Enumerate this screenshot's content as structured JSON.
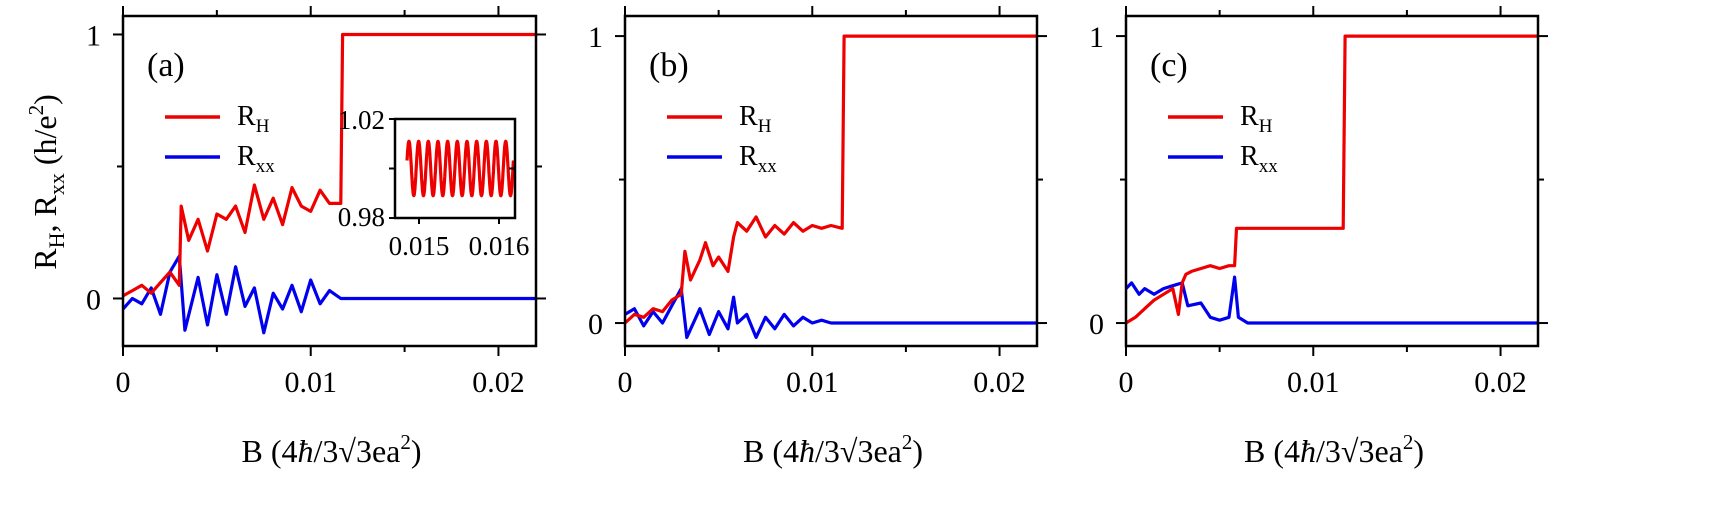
{
  "figure": {
    "y_axis_title": "R_H, R_xx (h/e^2)",
    "x_axis_title": "B (4ħ/3√3ea²)"
  },
  "colors": {
    "RH": "#ee0000",
    "Rxx": "#0000ee"
  },
  "chart_data": [
    {
      "type": "line",
      "panel_label": "(a)",
      "xlabel": "B (4ħ/3√3ea²)",
      "ylabel": "R_H, R_xx (h/e²)",
      "xlim": [
        0,
        0.022
      ],
      "ylim": [
        -0.18,
        1.07
      ],
      "x_ticks": [
        "0",
        "0.01",
        "0.02"
      ],
      "y_ticks": [
        "0",
        "1"
      ],
      "legend": [
        "R_H",
        "R_xx"
      ],
      "series": [
        {
          "name": "R_H",
          "x": [
            0,
            0.0005,
            0.001,
            0.0015,
            0.002,
            0.0025,
            0.003,
            0.0031,
            0.0035,
            0.004,
            0.0045,
            0.005,
            0.0055,
            0.006,
            0.0065,
            0.007,
            0.0075,
            0.008,
            0.0085,
            0.009,
            0.0095,
            0.01,
            0.0105,
            0.011,
            0.0116,
            0.0117,
            0.013,
            0.016,
            0.02,
            0.022
          ],
          "y": [
            0.01,
            0.03,
            0.05,
            0.02,
            0.06,
            0.1,
            0.05,
            0.35,
            0.22,
            0.3,
            0.18,
            0.32,
            0.3,
            0.35,
            0.25,
            0.43,
            0.3,
            0.38,
            0.28,
            0.42,
            0.35,
            0.33,
            0.41,
            0.36,
            0.36,
            1.0,
            1.0,
            1.0,
            1.0,
            1.0
          ]
        },
        {
          "name": "R_xx",
          "x": [
            0,
            0.0005,
            0.001,
            0.0015,
            0.002,
            0.0025,
            0.003,
            0.0033,
            0.004,
            0.0045,
            0.005,
            0.0055,
            0.006,
            0.0065,
            0.007,
            0.0075,
            0.008,
            0.0085,
            0.009,
            0.0095,
            0.01,
            0.0105,
            0.011,
            0.0116,
            0.012,
            0.016,
            0.022
          ],
          "y": [
            -0.04,
            0.0,
            -0.02,
            0.04,
            -0.06,
            0.1,
            0.16,
            -0.12,
            0.08,
            -0.1,
            0.09,
            -0.06,
            0.12,
            -0.03,
            0.04,
            -0.13,
            0.02,
            -0.04,
            0.05,
            -0.05,
            0.07,
            -0.02,
            0.03,
            0.0,
            0.0,
            0.0,
            0.0
          ]
        }
      ],
      "inset": {
        "xlim": [
          0.0147,
          0.0162
        ],
        "ylim": [
          0.98,
          1.02
        ],
        "x_ticks": [
          "0.015",
          "0.016"
        ],
        "y_ticks": [
          "1.02",
          "0.98"
        ],
        "series": {
          "name": "R_H",
          "mean": 1.0,
          "amplitude": 0.011,
          "cycles": 11
        }
      }
    },
    {
      "type": "line",
      "panel_label": "(b)",
      "xlabel": "B (4ħ/3√3ea²)",
      "xlim": [
        0,
        0.022
      ],
      "ylim": [
        -0.08,
        1.07
      ],
      "x_ticks": [
        "0",
        "0.01",
        "0.02"
      ],
      "y_ticks": [
        "0",
        "1"
      ],
      "legend": [
        "R_H",
        "R_xx"
      ],
      "series": [
        {
          "name": "R_H",
          "x": [
            0,
            0.0005,
            0.001,
            0.0015,
            0.002,
            0.0025,
            0.003,
            0.0032,
            0.0035,
            0.004,
            0.0043,
            0.0047,
            0.005,
            0.0055,
            0.0058,
            0.006,
            0.0065,
            0.007,
            0.0075,
            0.008,
            0.0085,
            0.009,
            0.0095,
            0.01,
            0.0105,
            0.011,
            0.0116,
            0.0117,
            0.016,
            0.022
          ],
          "y": [
            0.0,
            0.03,
            0.02,
            0.05,
            0.04,
            0.08,
            0.1,
            0.25,
            0.15,
            0.22,
            0.28,
            0.2,
            0.23,
            0.18,
            0.3,
            0.35,
            0.32,
            0.37,
            0.3,
            0.34,
            0.31,
            0.35,
            0.32,
            0.34,
            0.33,
            0.34,
            0.33,
            1.0,
            1.0,
            1.0
          ]
        },
        {
          "name": "R_xx",
          "x": [
            0,
            0.0005,
            0.001,
            0.0015,
            0.002,
            0.0025,
            0.003,
            0.0033,
            0.004,
            0.0045,
            0.005,
            0.0055,
            0.0058,
            0.006,
            0.0065,
            0.007,
            0.0075,
            0.008,
            0.0085,
            0.009,
            0.0095,
            0.01,
            0.0105,
            0.011,
            0.0116,
            0.016,
            0.022
          ],
          "y": [
            0.03,
            0.05,
            -0.01,
            0.04,
            0.0,
            0.06,
            0.12,
            -0.05,
            0.05,
            -0.04,
            0.04,
            -0.02,
            0.09,
            0.0,
            0.03,
            -0.05,
            0.02,
            -0.02,
            0.03,
            -0.01,
            0.02,
            0.0,
            0.01,
            0.0,
            0.0,
            0.0,
            0.0
          ]
        }
      ]
    },
    {
      "type": "line",
      "panel_label": "(c)",
      "xlabel": "B (4ħ/3√3ea²)",
      "xlim": [
        0,
        0.022
      ],
      "ylim": [
        -0.08,
        1.07
      ],
      "x_ticks": [
        "0",
        "0.01",
        "0.02"
      ],
      "y_ticks": [
        "0",
        "1"
      ],
      "legend": [
        "R_H",
        "R_xx"
      ],
      "series": [
        {
          "name": "R_H",
          "x": [
            0,
            0.0005,
            0.001,
            0.0015,
            0.002,
            0.0025,
            0.0028,
            0.003,
            0.0032,
            0.0035,
            0.004,
            0.0045,
            0.005,
            0.0055,
            0.0058,
            0.0059,
            0.008,
            0.0116,
            0.0117,
            0.016,
            0.022
          ],
          "y": [
            0.0,
            0.02,
            0.05,
            0.08,
            0.1,
            0.12,
            0.03,
            0.14,
            0.17,
            0.18,
            0.19,
            0.2,
            0.19,
            0.2,
            0.2,
            0.33,
            0.33,
            0.33,
            1.0,
            1.0,
            1.0
          ]
        },
        {
          "name": "R_xx",
          "x": [
            0,
            0.0003,
            0.0007,
            0.001,
            0.0015,
            0.002,
            0.0025,
            0.003,
            0.0033,
            0.004,
            0.0045,
            0.005,
            0.0055,
            0.0058,
            0.006,
            0.0065,
            0.008,
            0.022
          ],
          "y": [
            0.12,
            0.14,
            0.1,
            0.12,
            0.1,
            0.12,
            0.13,
            0.14,
            0.06,
            0.07,
            0.02,
            0.01,
            0.02,
            0.16,
            0.02,
            0.0,
            0.0,
            0.0
          ]
        }
      ]
    }
  ]
}
